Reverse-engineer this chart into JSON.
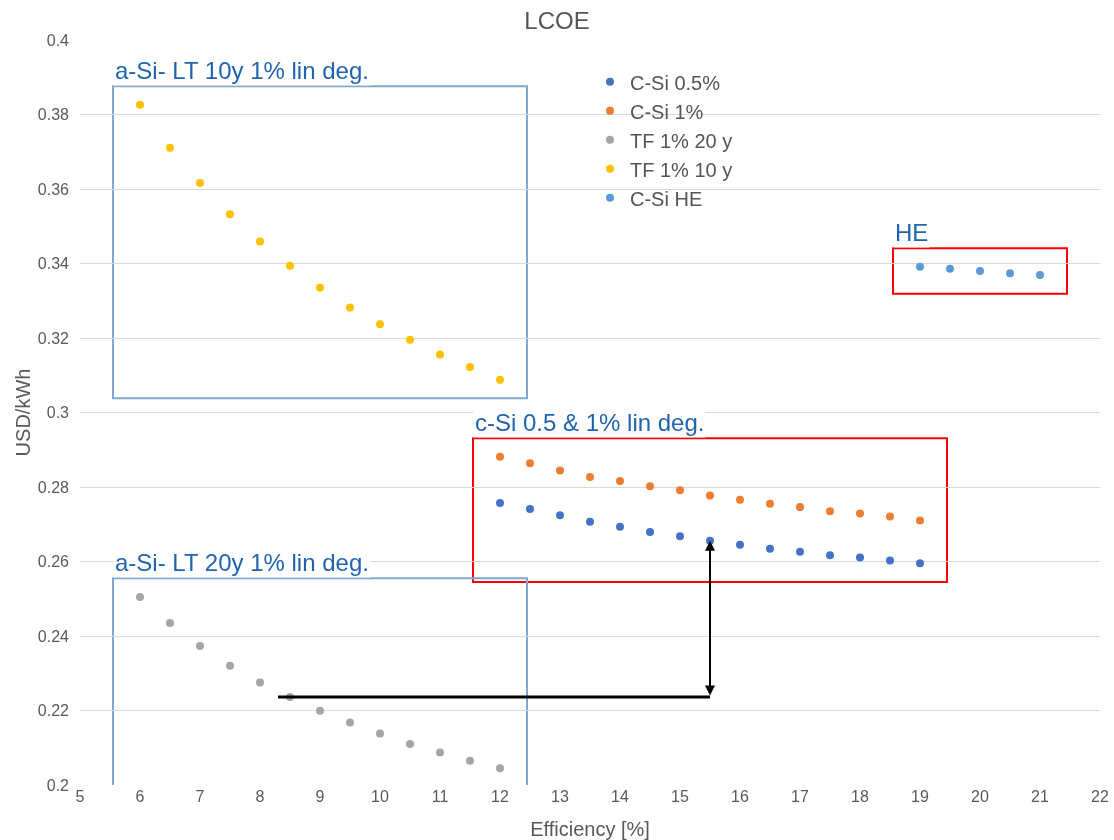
{
  "chart_data": {
    "type": "scatter",
    "title": "LCOE",
    "xlabel": "Efficiency [%]",
    "ylabel": "USD/kWh",
    "xlim": [
      5,
      22
    ],
    "xticks": [
      5,
      6,
      7,
      8,
      9,
      10,
      11,
      12,
      13,
      14,
      15,
      16,
      17,
      18,
      19,
      20,
      21,
      22
    ],
    "ylim": [
      0.2,
      0.4
    ],
    "yticks": [
      0.2,
      0.22,
      0.24,
      0.26,
      0.28,
      0.3,
      0.32,
      0.34,
      0.36,
      0.38,
      0.4
    ],
    "grid": "y",
    "legend": "top",
    "marker": "circle",
    "series": [
      {
        "name": "C-Si 0.5%",
        "color": "#4472c4",
        "x": [
          12,
          12.5,
          13,
          13.5,
          14,
          14.5,
          15,
          15.5,
          16,
          16.5,
          17,
          17.5,
          18,
          18.5,
          19
        ],
        "values": [
          0.2757,
          0.2741,
          0.2724,
          0.2707,
          0.2693,
          0.2679,
          0.2668,
          0.2656,
          0.2645,
          0.2634,
          0.2626,
          0.2617,
          0.2611,
          0.2603,
          0.2595
        ]
      },
      {
        "name": "C-Si 1%",
        "color": "#ed7d31",
        "x": [
          12,
          12.5,
          13,
          13.5,
          14,
          14.5,
          15,
          15.5,
          16,
          16.5,
          17,
          17.5,
          18,
          18.5,
          19
        ],
        "values": [
          0.2881,
          0.2864,
          0.2844,
          0.2827,
          0.2816,
          0.2802,
          0.2791,
          0.2777,
          0.2766,
          0.2755,
          0.2746,
          0.2735,
          0.2729,
          0.2721,
          0.271
        ]
      },
      {
        "name": "TF 1% 20 y",
        "color": "#a5a5a5",
        "x": [
          6,
          6.5,
          7,
          7.5,
          8,
          8.5,
          9,
          9.5,
          10,
          10.5,
          11,
          11.5,
          12
        ],
        "values": [
          0.2505,
          0.2435,
          0.2373,
          0.232,
          0.2275,
          0.2236,
          0.2199,
          0.2168,
          0.2138,
          0.211,
          0.2087,
          0.2065,
          0.2045
        ]
      },
      {
        "name": "TF 1% 10 y",
        "color": "#ffc000",
        "x": [
          6,
          6.5,
          7,
          7.5,
          8,
          8.5,
          9,
          9.5,
          10,
          10.5,
          11,
          11.5,
          12
        ],
        "values": [
          0.3826,
          0.3711,
          0.3616,
          0.3532,
          0.3459,
          0.3394,
          0.3335,
          0.3282,
          0.3237,
          0.3195,
          0.3156,
          0.3122,
          0.3088
        ]
      },
      {
        "name": "C-Si HE",
        "color": "#5b9bd5",
        "x": [
          19,
          19.5,
          20,
          20.5,
          21
        ],
        "values": [
          0.3391,
          0.3386,
          0.338,
          0.3374,
          0.3369
        ]
      }
    ],
    "annotations": [
      "a-Si- LT 10y 1% lin deg.",
      "c-Si 0.5 & 1% lin deg.",
      "a-Si- LT 20y 1% lin deg.",
      "HE"
    ]
  }
}
